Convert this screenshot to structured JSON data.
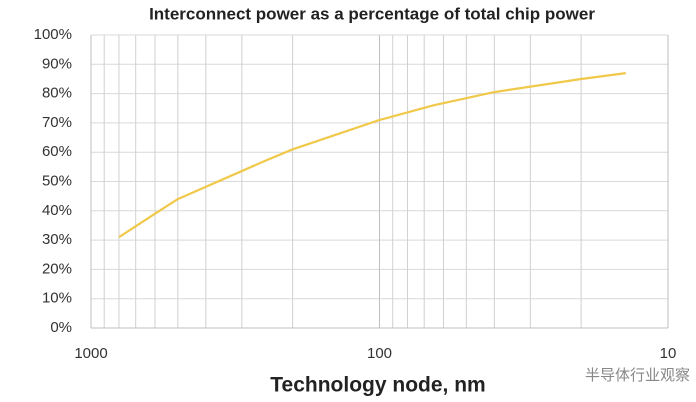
{
  "chart_data": {
    "type": "line",
    "title": "Interconnect power as a percentage of total chip power",
    "x_label": "Technology node, nm",
    "watermark": "半导体行业观察",
    "x": [
      800,
      600,
      500,
      250,
      200,
      100,
      65,
      40,
      20,
      14
    ],
    "series": [
      {
        "name": "Interconnect power",
        "color": "#f0c84a",
        "values": [
          31,
          39,
          44,
          57,
          61,
          71,
          76,
          80.5,
          85,
          87
        ]
      }
    ],
    "xlim": [
      1000,
      10
    ],
    "x_log": true,
    "xticks": [
      1000,
      100,
      10
    ],
    "xminor": [
      900,
      800,
      700,
      600,
      500,
      400,
      300,
      200,
      90,
      80,
      70,
      60,
      50,
      40,
      30,
      20
    ],
    "ylim": [
      0,
      100
    ],
    "yticks": [
      {
        "value": 0,
        "label": "0%"
      },
      {
        "value": 10,
        "label": "10%"
      },
      {
        "value": 20,
        "label": "20%"
      },
      {
        "value": 30,
        "label": "30%"
      },
      {
        "value": 40,
        "label": "40%"
      },
      {
        "value": 50,
        "label": "50%"
      },
      {
        "value": 60,
        "label": "60%"
      },
      {
        "value": 70,
        "label": "70%"
      },
      {
        "value": 80,
        "label": "80%"
      },
      {
        "value": 90,
        "label": "90%"
      },
      {
        "value": 100,
        "label": "100%"
      }
    ],
    "grid": true,
    "legend": false
  }
}
